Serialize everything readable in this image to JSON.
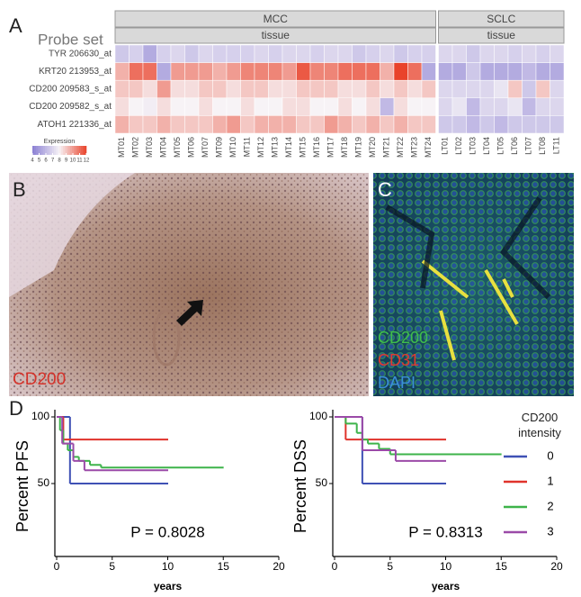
{
  "panel_labels": [
    "A",
    "B",
    "C",
    "D"
  ],
  "images": {
    "b_label": "CD200",
    "c_labels": [
      {
        "text": "CD200",
        "color": "#3fbf4a"
      },
      {
        "text": "CD31",
        "color": "#e23a2e"
      },
      {
        "text": "DAPI",
        "color": "#3a8fd8"
      }
    ]
  },
  "chart_data": [
    {
      "type": "heatmap",
      "y_label": "Probe set",
      "rows": [
        "TYR 206630_at",
        "KRT20 213953_at",
        "CD200 209583_s_at",
        "CD200 209582_s_at",
        "ATOH1 221336_at"
      ],
      "groups": [
        {
          "name": "MCC",
          "subtitle": "tissue",
          "categories": [
            "MT01",
            "MT02",
            "MT03",
            "MT04",
            "MT05",
            "MT06",
            "MT07",
            "MT09",
            "MT10",
            "MT11",
            "MT12",
            "MT13",
            "MT14",
            "MT15",
            "MT16",
            "MT17",
            "MT18",
            "MT19",
            "MT20",
            "MT21",
            "MT22",
            "MT23",
            "MT24"
          ],
          "values": [
            [
              6.5,
              6.8,
              5.5,
              6.8,
              7,
              6.5,
              7,
              6.8,
              6.8,
              6.8,
              7,
              6.8,
              7,
              7,
              6.8,
              7,
              7,
              6.5,
              6.8,
              7,
              6.5,
              6.8,
              6.8
            ],
            [
              9.5,
              11,
              11,
              5.5,
              10,
              10,
              10,
              9.5,
              10,
              10.5,
              10.5,
              10.5,
              10,
              11.5,
              10.5,
              10.5,
              11,
              11,
              11,
              9.5,
              12,
              11,
              5.5
            ],
            [
              9,
              9,
              8.5,
              10,
              8.5,
              8.5,
              9,
              9,
              8.5,
              9,
              9,
              8.5,
              8.5,
              9,
              9,
              9,
              8.5,
              8.5,
              9,
              8.5,
              9,
              8.5,
              9
            ],
            [
              8.5,
              8,
              7.8,
              8.5,
              8,
              8,
              8.5,
              8,
              8,
              8.5,
              8,
              8,
              8.5,
              8.5,
              8,
              8,
              8.5,
              8,
              8.5,
              6,
              8.5,
              8,
              8
            ],
            [
              9.5,
              9,
              9,
              9.5,
              9,
              9,
              9,
              9.5,
              10,
              9,
              9.5,
              9.5,
              9.5,
              9,
              9,
              10,
              9.5,
              9,
              9.5,
              9,
              9.5,
              9,
              9
            ]
          ]
        },
        {
          "name": "SCLC",
          "subtitle": "tissue",
          "categories": [
            "LT01",
            "LT02",
            "LT03",
            "LT04",
            "LT05",
            "LT06",
            "LT07",
            "LT08",
            "LT11"
          ],
          "values": [
            [
              7,
              7,
              6.5,
              7,
              7,
              6.8,
              7,
              6.8,
              7
            ],
            [
              5.5,
              5.5,
              6.5,
              5.5,
              5.5,
              5.5,
              6,
              5.5,
              5.5
            ],
            [
              7,
              7,
              7,
              7,
              7.5,
              9,
              6.5,
              9,
              7
            ],
            [
              7,
              7.5,
              6,
              7,
              7,
              7.5,
              6,
              7,
              7
            ],
            [
              6.5,
              6.5,
              6,
              6.5,
              6,
              6.5,
              6.5,
              6.5,
              6.5
            ]
          ]
        }
      ],
      "colorbar": {
        "title": "Expression",
        "zlim": [
          4,
          12
        ],
        "ticks": [
          4,
          5,
          6,
          7,
          8,
          9,
          10,
          11,
          12
        ],
        "colors": [
          "#8a7fd3",
          "#f7f3f6",
          "#e9432b"
        ]
      }
    },
    {
      "type": "step",
      "y_label": "Percent PFS",
      "x_label": "years",
      "annotation": "P = 0.8028",
      "xlim": [
        0,
        20
      ],
      "xticks": [
        0,
        5,
        10,
        15,
        20
      ],
      "ylim": [
        0,
        100
      ],
      "yticks": [
        50,
        100
      ],
      "series": [
        {
          "color": "#3f51b5",
          "x": [
            0,
            1.2,
            10
          ],
          "values": [
            100,
            50,
            50
          ]
        },
        {
          "color": "#e0332b",
          "x": [
            0,
            0.6,
            10
          ],
          "values": [
            100,
            83,
            83
          ]
        },
        {
          "color": "#3db34a",
          "x": [
            0,
            0.3,
            0.6,
            1,
            1.5,
            2,
            3,
            4,
            15
          ],
          "values": [
            100,
            90,
            80,
            75,
            70,
            67,
            64,
            62,
            62
          ]
        },
        {
          "color": "#9b4aa8",
          "x": [
            0,
            0.5,
            1.5,
            2.5,
            10
          ],
          "values": [
            100,
            80,
            67,
            60,
            60
          ]
        }
      ]
    },
    {
      "type": "step",
      "y_label": "Percent DSS",
      "x_label": "years",
      "annotation": "P = 0.8313",
      "xlim": [
        0,
        20
      ],
      "xticks": [
        0,
        5,
        10,
        15,
        20
      ],
      "ylim": [
        0,
        100
      ],
      "yticks": [
        50,
        100
      ],
      "legend_title": "CD200 intensity",
      "series": [
        {
          "name": "0",
          "color": "#3f51b5",
          "x": [
            0,
            2.5,
            10
          ],
          "values": [
            100,
            50,
            50
          ]
        },
        {
          "name": "1",
          "color": "#e0332b",
          "x": [
            0,
            1,
            10
          ],
          "values": [
            100,
            83,
            83
          ]
        },
        {
          "name": "2",
          "color": "#3db34a",
          "x": [
            0,
            1,
            2,
            2.5,
            3,
            4,
            5,
            15
          ],
          "values": [
            100,
            95,
            88,
            83,
            80,
            76,
            72,
            72
          ]
        },
        {
          "name": "3",
          "color": "#9b4aa8",
          "x": [
            0,
            2.5,
            5.5,
            10
          ],
          "values": [
            100,
            75,
            67,
            67
          ]
        }
      ]
    }
  ]
}
